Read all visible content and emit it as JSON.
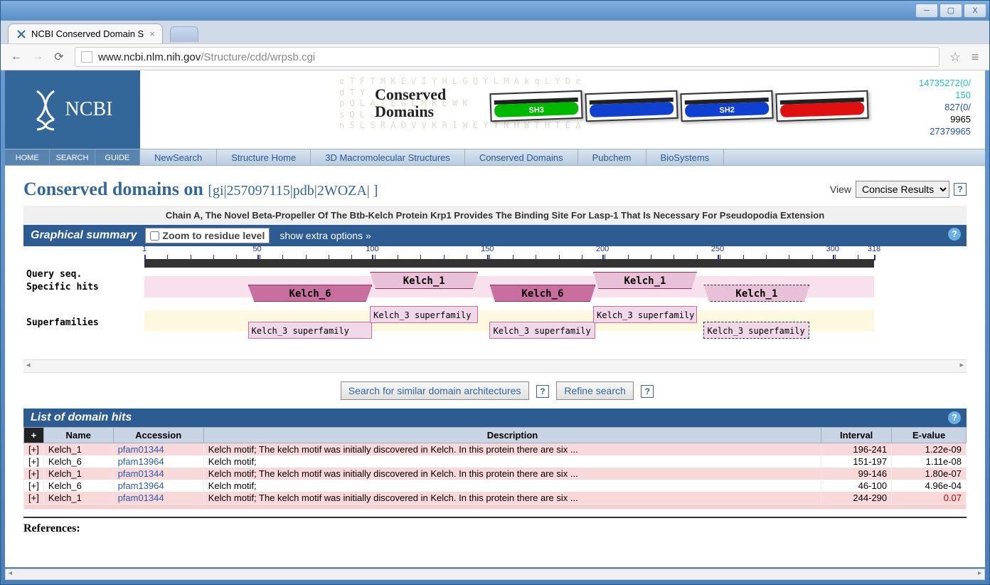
{
  "window": {
    "tab_title": "NCBI Conserved Domain S",
    "url_host": "www.ncbi.nlm.nih.gov",
    "url_path": "/Structure/cdd/wrpsb.cgi"
  },
  "header": {
    "logo_text": "NCBI",
    "banner_title_1": "Conserved",
    "banner_title_2": "Domains",
    "banner_faint": "e T F T M K E V I Y H L G Q Y L M A k q L Y D e\nd T Y\np Q L A T E G L M K L W K\ns Q L\nn S L S R A D V V K R I W E Y T N H W T H T E A",
    "banner_blocks": [
      {
        "label": "SH3",
        "color": "#00b800"
      },
      {
        "label": "",
        "color": "#1040d0"
      },
      {
        "label": "SH2",
        "color": "#1040d0"
      },
      {
        "label": "",
        "color": "#e01010"
      }
    ],
    "banner_nums": [
      {
        "text": "14735272(0/",
        "color": "#20c0d0"
      },
      {
        "text": "150",
        "color": "#20c0d0"
      },
      {
        "text": "827(0/",
        "color": "#2050c0"
      },
      {
        "text": "9965",
        "color": "#000"
      },
      {
        "text": "27379965",
        "color": "#2050c0"
      }
    ],
    "mini_tabs": [
      "HOME",
      "SEARCH",
      "GUIDE"
    ],
    "main_tabs": [
      "NewSearch",
      "Structure Home",
      "3D Macromolecular Structures",
      "Conserved Domains",
      "Pubchem",
      "BioSystems"
    ]
  },
  "body": {
    "title": "Conserved domains on",
    "gi_string": "[gi|257097115|pdb|2WOZA| ]",
    "view_label": "View",
    "view_select": "Concise Results",
    "description": "Chain A, The Novel Beta-Propeller Of The Btb-Kelch Protein Krp1 Provides The Binding Site For Lasp-1 That Is Necessary For Pseudopodia Extension",
    "graphical": {
      "title": "Graphical summary",
      "zoom_label": "Zoom to residue level",
      "extra_opts": "show extra options »",
      "query_label": "Query seq.",
      "specific_label": "Specific hits",
      "super_label": "Superfamilies",
      "ruler": {
        "start": 1,
        "end": 318,
        "major_ticks": [
          1,
          50,
          100,
          150,
          200,
          250,
          300,
          318
        ]
      },
      "specific_hits": [
        {
          "label": "Kelch_6",
          "start": 46,
          "end": 100,
          "style": "dark"
        },
        {
          "label": "Kelch_1",
          "start": 99,
          "end": 146,
          "style": "light"
        },
        {
          "label": "Kelch_6",
          "start": 151,
          "end": 197,
          "style": "dark"
        },
        {
          "label": "Kelch_1",
          "start": 196,
          "end": 241,
          "style": "light"
        },
        {
          "label": "Kelch_1",
          "start": 244,
          "end": 290,
          "style": "dashed"
        }
      ],
      "superfamilies": [
        {
          "label": "Kelch_3 superfamily",
          "start": 46,
          "end": 100,
          "style": "solid"
        },
        {
          "label": "Kelch_3 superfamily",
          "start": 99,
          "end": 146,
          "style": "solid"
        },
        {
          "label": "Kelch_3 superfamily",
          "start": 151,
          "end": 197,
          "style": "solid"
        },
        {
          "label": "Kelch_3 superfamily",
          "start": 196,
          "end": 241,
          "style": "solid"
        },
        {
          "label": "Kelch_3 superfamily",
          "start": 244,
          "end": 290,
          "style": "dashed"
        }
      ]
    },
    "search_buttons": {
      "similar": "Search for similar domain architectures",
      "refine": "Refine search"
    },
    "hits": {
      "title": "List of domain hits",
      "columns": [
        "",
        "Name",
        "Accession",
        "Description",
        "Interval",
        "E-value"
      ],
      "rows": [
        {
          "expand": "[+]",
          "name": "Kelch_1",
          "accession": "pfam01344",
          "description": "Kelch motif; The kelch motif was initially discovered in Kelch. In this protein there are six ...",
          "interval": "196-241",
          "evalue": "1.22e-09",
          "class": "row-pink"
        },
        {
          "expand": "[+]",
          "name": "Kelch_6",
          "accession": "pfam13964",
          "description": "Kelch motif;",
          "interval": "151-197",
          "evalue": "1.11e-08",
          "class": "row-white"
        },
        {
          "expand": "[+]",
          "name": "Kelch_1",
          "accession": "pfam01344",
          "description": "Kelch motif; The kelch motif was initially discovered in Kelch. In this protein there are six ...",
          "interval": "99-146",
          "evalue": "1.80e-07",
          "class": "row-pink"
        },
        {
          "expand": "[+]",
          "name": "Kelch_6",
          "accession": "pfam13964",
          "description": "Kelch motif;",
          "interval": "46-100",
          "evalue": "4.96e-04",
          "class": "row-white"
        },
        {
          "expand": "[+]",
          "name": "Kelch_1",
          "accession": "pfam01344",
          "description": "Kelch motif; The kelch motif was initially discovered in Kelch. In this protein there are six ...",
          "interval": "244-290",
          "evalue": "0.07",
          "class": "row-pink",
          "eval_red": true
        }
      ]
    },
    "references_label": "References:"
  },
  "colors": {
    "ncbi_blue": "#336699",
    "section_bar": "#2d5c92",
    "domain_dark": "#c86fa0",
    "domain_light": "#e8c0d8",
    "track_pink": "#f8e0ec",
    "track_yellow": "#fdf8e0",
    "link": "#2a5aaa"
  }
}
